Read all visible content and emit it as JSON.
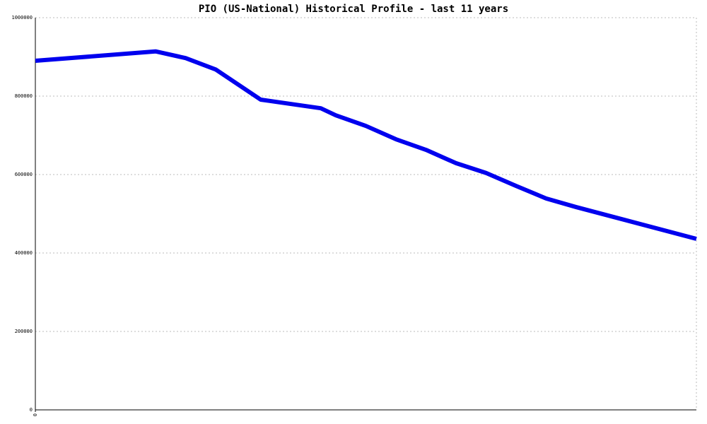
{
  "chart_data": {
    "type": "line",
    "title": "PIO (US-National) Historical Profile - last 11 years",
    "x": [
      0,
      2,
      2.5,
      3,
      3.75,
      4.75,
      5,
      5.5,
      6,
      6.5,
      7,
      7.5,
      8,
      8.5,
      9,
      11
    ],
    "series": [
      {
        "color": "#0000ee",
        "values": [
          890000,
          914000,
          897000,
          868000,
          791000,
          769000,
          751000,
          724000,
          690000,
          663000,
          629000,
          604000,
          571000,
          539000,
          517000,
          436000
        ]
      }
    ],
    "xlim": [
      0,
      11
    ],
    "xticks": [
      0
    ],
    "ylim": [
      0,
      1000000
    ],
    "yticks": [
      0,
      200000,
      400000,
      600000,
      800000,
      1000000
    ],
    "grid": true
  }
}
